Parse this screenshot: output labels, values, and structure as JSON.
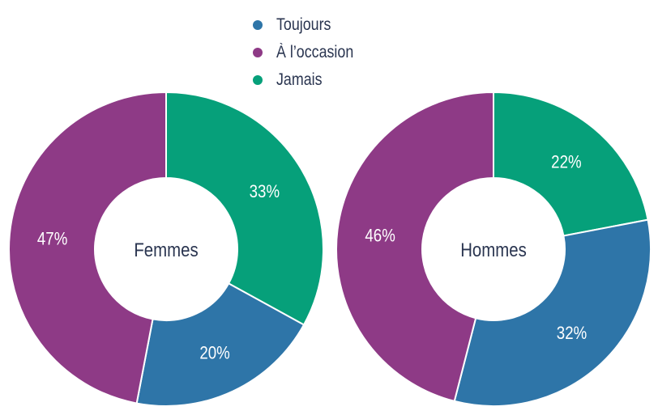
{
  "colors": {
    "toujours": "#2e75a8",
    "occasion": "#8e3a86",
    "jamais": "#06a07a"
  },
  "legend": [
    {
      "label": "Toujours",
      "color": "#2e75a8"
    },
    {
      "label": "À l’occasion",
      "color": "#8e3a86"
    },
    {
      "label": "Jamais",
      "color": "#06a07a"
    }
  ],
  "chart_data": [
    {
      "type": "pie",
      "center_label": "Femmes",
      "slices": [
        {
          "category": "Jamais",
          "value": 33,
          "label": "33%"
        },
        {
          "category": "Toujours",
          "value": 20,
          "label": "20%"
        },
        {
          "category": "À l’occasion",
          "value": 47,
          "label": "47%"
        }
      ]
    },
    {
      "type": "pie",
      "center_label": "Hommes",
      "slices": [
        {
          "category": "Jamais",
          "value": 22,
          "label": "22%"
        },
        {
          "category": "Toujours",
          "value": 32,
          "label": "32%"
        },
        {
          "category": "À l’occasion",
          "value": 46,
          "label": "46%"
        }
      ]
    }
  ]
}
